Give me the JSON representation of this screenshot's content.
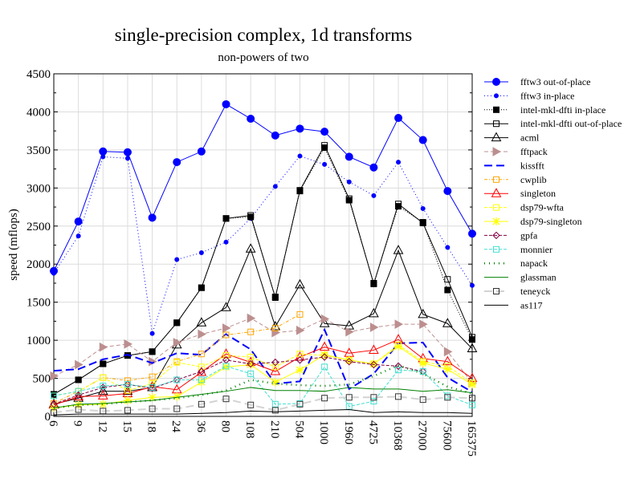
{
  "chart_data": {
    "type": "line",
    "title": "single-precision complex, 1d transforms",
    "subtitle": "non-powers of two",
    "xlabel": "",
    "ylabel": "speed (mflops)",
    "ylim": [
      0,
      4500
    ],
    "yticks": [
      "0",
      "500",
      "1000",
      "1500",
      "2000",
      "2500",
      "3000",
      "3500",
      "4000",
      "4500"
    ],
    "grid": true,
    "legend_position": "right",
    "categories": [
      "6",
      "9",
      "12",
      "15",
      "18",
      "24",
      "36",
      "80",
      "108",
      "210",
      "504",
      "1000",
      "1960",
      "4725",
      "10368",
      "27000",
      "75600",
      "165375"
    ],
    "series": [
      {
        "name": "fftw3 out-of-place",
        "color": "#0000ff",
        "values": [
          1910,
          2560,
          3480,
          3470,
          2610,
          3340,
          3480,
          4100,
          3910,
          3690,
          3780,
          3740,
          3410,
          3270,
          3920,
          3630,
          2960,
          2400
        ]
      },
      {
        "name": "fftw3 in-place",
        "color": "#0000ff",
        "values": [
          1880,
          2370,
          3410,
          3390,
          1090,
          2060,
          2150,
          2290,
          2600,
          3020,
          3420,
          3310,
          3080,
          2900,
          3340,
          2730,
          2220,
          1720
        ]
      },
      {
        "name": "intel-mkl-dfti in-place",
        "color": "#000000",
        "values": [
          290,
          480,
          690,
          800,
          850,
          1230,
          1690,
          2600,
          2620,
          1570,
          2960,
          3530,
          2840,
          1750,
          2760,
          2550,
          1660,
          1010
        ]
      },
      {
        "name": "intel-mkl-dfti out-of-place",
        "color": "#000000",
        "values": [
          290,
          480,
          690,
          800,
          850,
          1230,
          1690,
          2600,
          2640,
          1560,
          2970,
          3560,
          2860,
          1740,
          2790,
          2540,
          1800,
          1040
        ]
      },
      {
        "name": "acml",
        "color": "#000000",
        "values": [
          160,
          240,
          330,
          330,
          380,
          940,
          1230,
          1430,
          2200,
          1180,
          1730,
          1220,
          1190,
          1350,
          2180,
          1340,
          1220,
          890
        ]
      },
      {
        "name": "fftpack",
        "color": "#bc8f8f",
        "values": [
          530,
          680,
          910,
          950,
          720,
          970,
          1080,
          1160,
          1290,
          1100,
          1130,
          1280,
          1110,
          1170,
          1210,
          1210,
          850,
          440
        ]
      },
      {
        "name": "kissfft",
        "color": "#0000ff",
        "values": [
          600,
          620,
          750,
          810,
          700,
          830,
          810,
          1080,
          880,
          430,
          460,
          1140,
          360,
          560,
          960,
          970,
          510,
          320
        ]
      },
      {
        "name": "cwplib",
        "color": "#ffa500",
        "values": [
          170,
          330,
          510,
          470,
          520,
          720,
          820,
          1070,
          1110,
          1160,
          1340,
          null,
          null,
          null,
          null,
          null,
          null,
          null
        ]
      },
      {
        "name": "singleton",
        "color": "#ff0000",
        "values": [
          150,
          260,
          270,
          300,
          390,
          350,
          580,
          820,
          710,
          590,
          780,
          910,
          830,
          870,
          1010,
          760,
          720,
          500
        ]
      },
      {
        "name": "dsp79-wfta",
        "color": "#ffff00",
        "values": [
          270,
          330,
          510,
          340,
          430,
          710,
          650,
          800,
          780,
          650,
          820,
          800,
          740,
          690,
          940,
          720,
          660,
          440
        ]
      },
      {
        "name": "dsp79-singleton",
        "color": "#ffff00",
        "values": [
          110,
          150,
          160,
          210,
          250,
          260,
          450,
          650,
          680,
          450,
          610,
          810,
          740,
          690,
          920,
          700,
          620,
          420
        ]
      },
      {
        "name": "gpfa",
        "color": "#800040",
        "values": [
          160,
          280,
          380,
          420,
          370,
          480,
          590,
          740,
          690,
          710,
          740,
          780,
          720,
          680,
          660,
          590,
          null,
          null
        ]
      },
      {
        "name": "monnier",
        "color": "#40e0d0",
        "values": [
          270,
          330,
          400,
          420,
          380,
          480,
          480,
          660,
          560,
          160,
          170,
          650,
          130,
          200,
          610,
          590,
          270,
          150
        ]
      },
      {
        "name": "napack",
        "color": "#008000",
        "values": [
          110,
          150,
          160,
          190,
          210,
          240,
          280,
          340,
          480,
          430,
          410,
          400,
          420,
          530,
          670,
          560,
          390,
          300
        ]
      },
      {
        "name": "glassman",
        "color": "#008000",
        "values": [
          110,
          160,
          170,
          190,
          210,
          250,
          290,
          330,
          380,
          340,
          340,
          330,
          380,
          360,
          360,
          330,
          350,
          310
        ]
      },
      {
        "name": "teneyck",
        "color": "#d3d3d3",
        "values": [
          50,
          90,
          70,
          80,
          100,
          100,
          160,
          230,
          150,
          80,
          160,
          240,
          250,
          250,
          260,
          220,
          250,
          240
        ]
      },
      {
        "name": "as117",
        "color": "#000000",
        "values": [
          20,
          30,
          30,
          30,
          30,
          30,
          40,
          50,
          70,
          60,
          70,
          80,
          90,
          50,
          60,
          50,
          50,
          40
        ]
      }
    ]
  }
}
